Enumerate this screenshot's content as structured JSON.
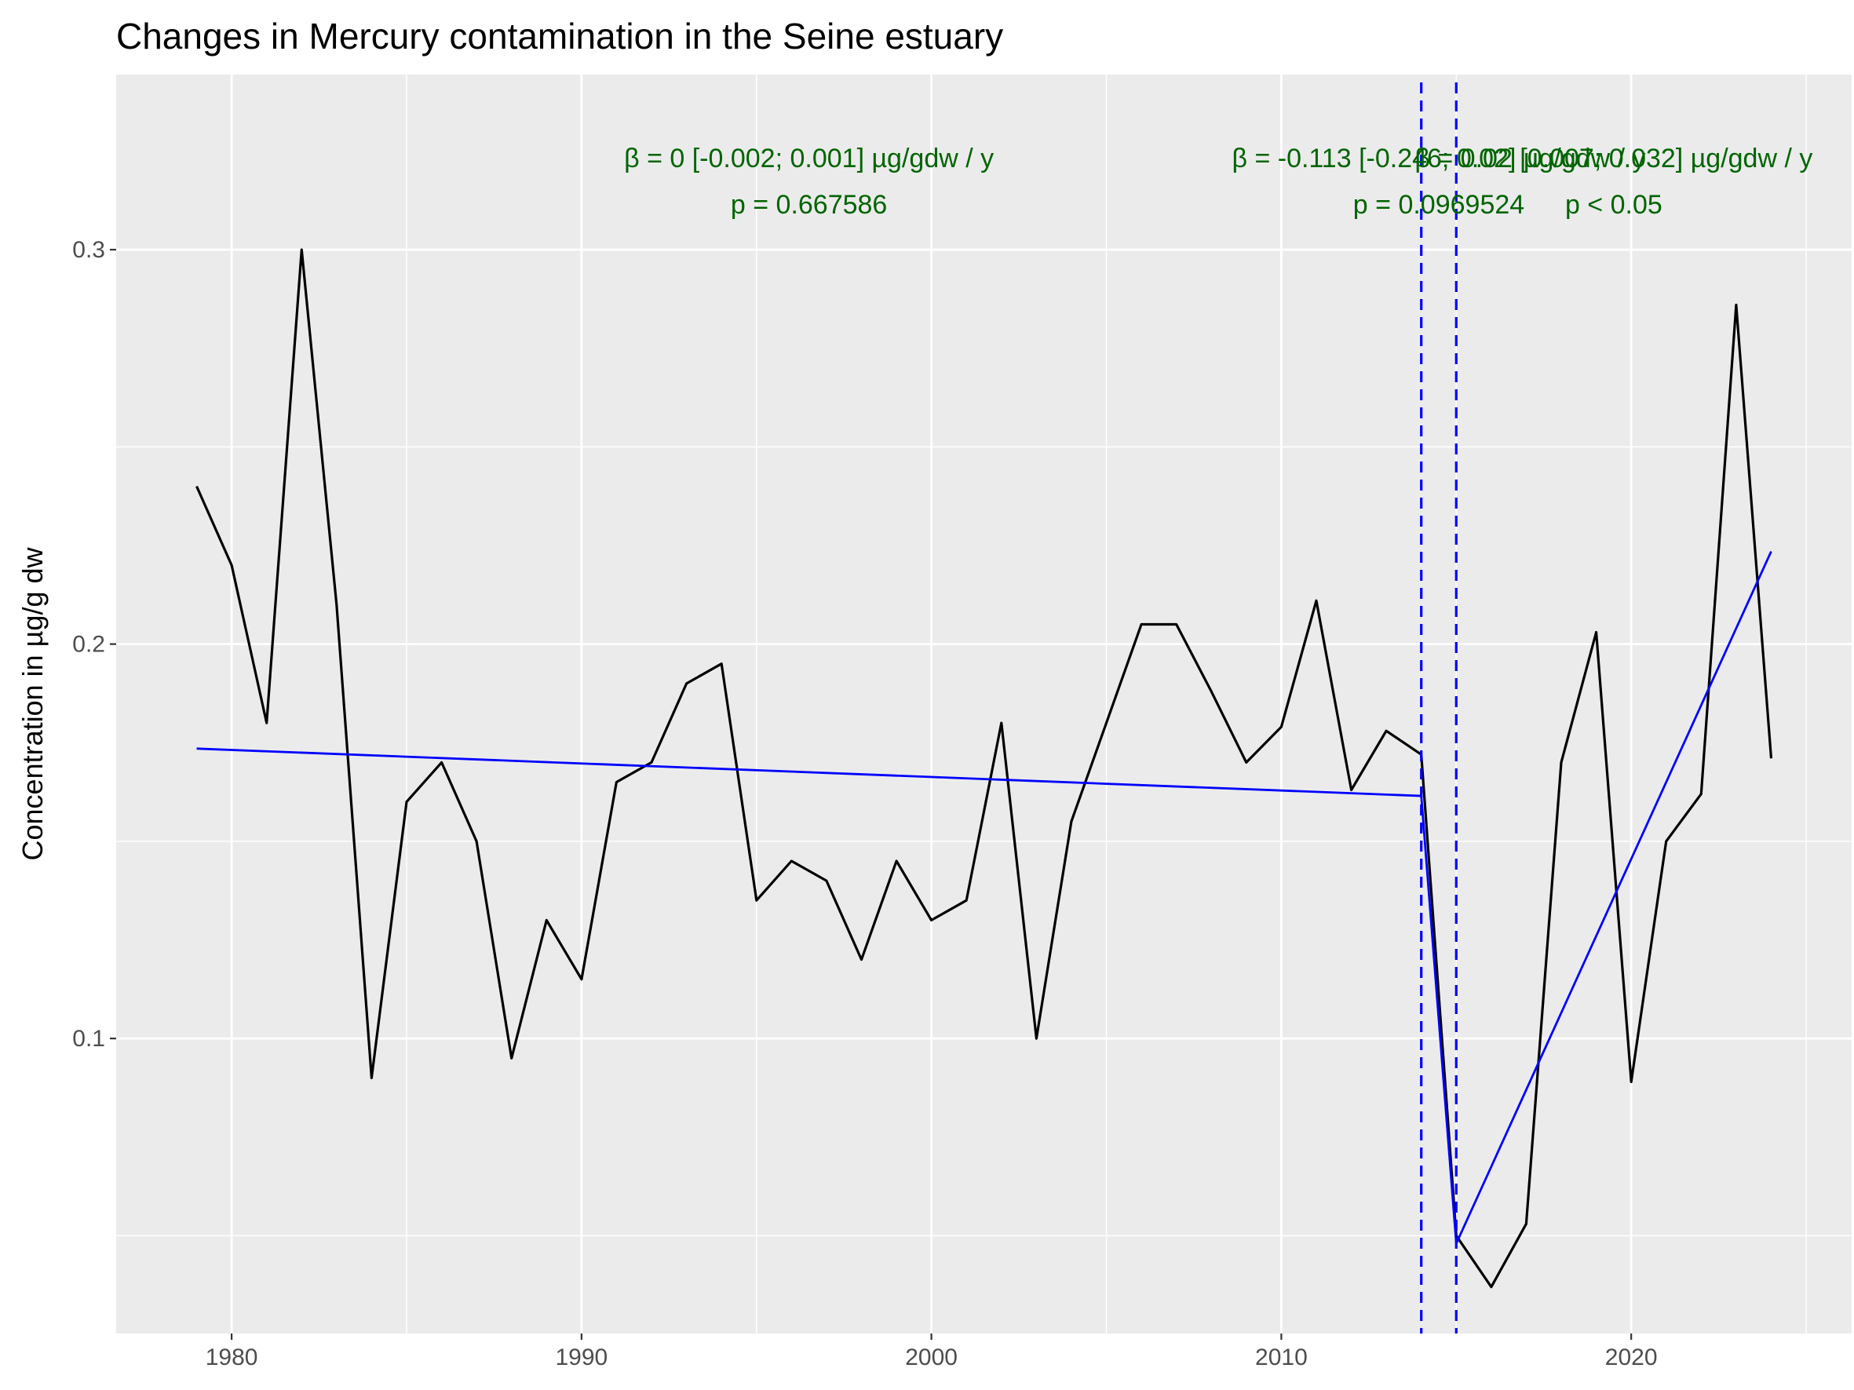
{
  "chart_data": {
    "type": "line",
    "title": "Changes in Mercury contamination in the Seine estuary",
    "xlabel": "",
    "ylabel": "Concentration in µg/g dw",
    "xlim": [
      1976.7,
      2026.3
    ],
    "ylim": [
      0.0252,
      0.3444
    ],
    "x_ticks": [
      1980,
      1990,
      2000,
      2010,
      2020
    ],
    "x_tick_labels": [
      "1980",
      "1990",
      "2000",
      "2010",
      "2020"
    ],
    "y_ticks": [
      0.1,
      0.2,
      0.3
    ],
    "y_tick_labels": [
      "0.1",
      "0.2",
      "0.3"
    ],
    "grid": true,
    "series": [
      {
        "color": "#000000",
        "x": [
          1979,
          1980,
          1981,
          1982,
          1983,
          1984,
          1985,
          1986,
          1987,
          1988,
          1989,
          1990,
          1991,
          1992,
          1993,
          1994,
          1995,
          1996,
          1997,
          1998,
          1999,
          2000,
          2001,
          2002,
          2003,
          2004,
          2005,
          2006,
          2007,
          2008,
          2009,
          2010,
          2011,
          2012,
          2013,
          2014,
          2015,
          2016,
          2017,
          2018,
          2019,
          2020,
          2021,
          2022,
          2023,
          2024
        ],
        "y": [
          0.24,
          0.22,
          0.18,
          0.3,
          0.21,
          0.09,
          0.16,
          0.17,
          0.15,
          0.095,
          0.13,
          0.115,
          0.165,
          0.17,
          0.19,
          0.195,
          0.135,
          0.145,
          0.14,
          0.12,
          0.145,
          0.13,
          0.135,
          0.18,
          0.1,
          0.155,
          0.18,
          0.205,
          0.205,
          0.188,
          0.17,
          0.179,
          0.211,
          0.163,
          0.178,
          0.172,
          0.05,
          0.037,
          0.053,
          0.17,
          0.203,
          0.089,
          0.15,
          0.162,
          0.286,
          0.171
        ]
      }
    ],
    "trend_lines": [
      {
        "color": "#0000ff",
        "x": [
          1979,
          2014
        ],
        "y": [
          0.1735,
          0.1615
        ]
      },
      {
        "color": "#0000ff",
        "x": [
          2014,
          2015
        ],
        "y": [
          0.1615,
          0.048
        ]
      },
      {
        "color": "#0000ff",
        "x": [
          2015,
          2024
        ],
        "y": [
          0.048,
          0.2235
        ]
      }
    ],
    "breakpoints": {
      "color": "#0000ff",
      "x": [
        2014,
        2015
      ]
    },
    "annotations": [
      {
        "color": "#006400",
        "line1": "β = 0 [-0.002; 0.001] µg/gdw / y",
        "line2": "p = 0.667586"
      },
      {
        "color": "#006400",
        "line1": "β = -0.113 [-0.246; 0.02] µg/gdw / y",
        "line2": "p = 0.0969524"
      },
      {
        "color": "#006400",
        "line1": "β = 0.02 [0.007; 0.032] µg/gdw / y",
        "line2": "p < 0.05"
      }
    ]
  }
}
